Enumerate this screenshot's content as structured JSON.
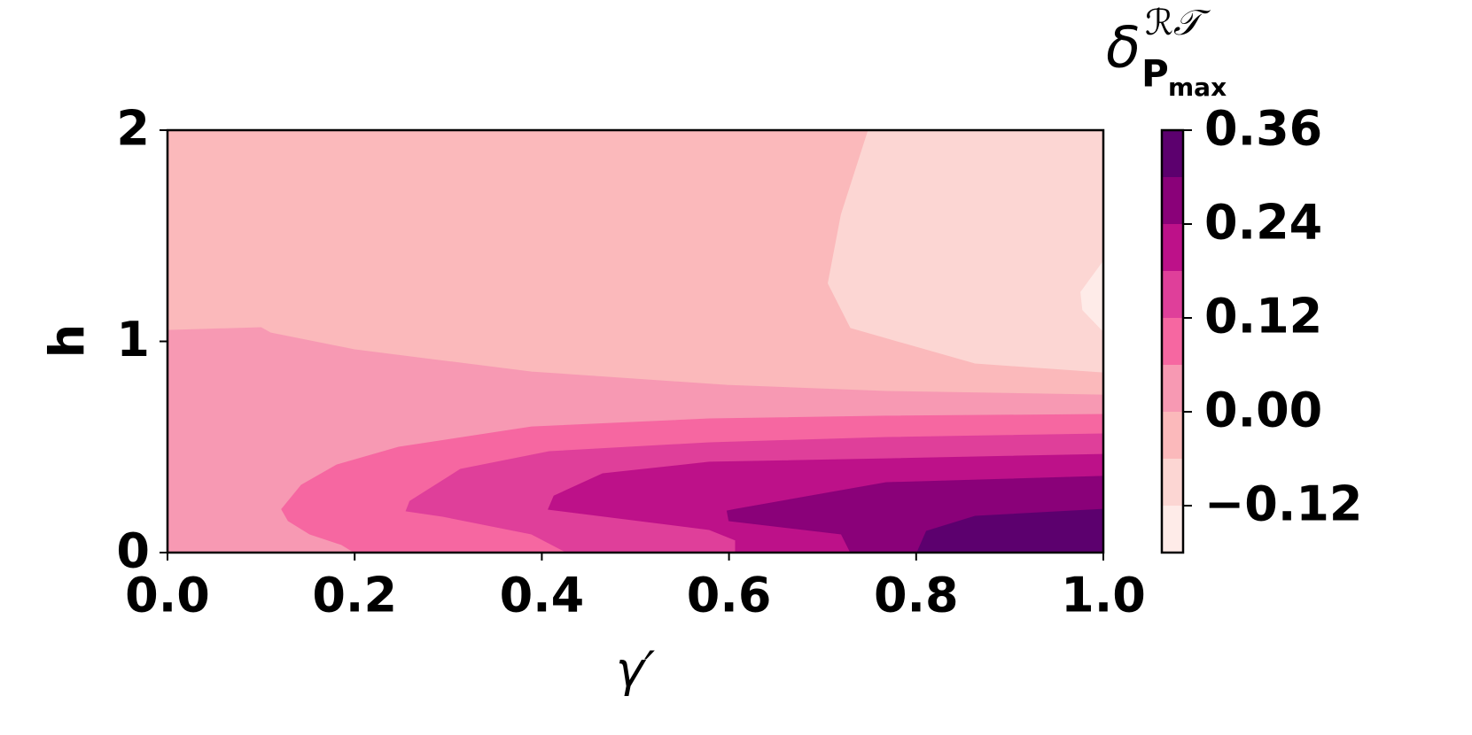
{
  "chart_data": {
    "type": "contourf",
    "xlabel": "γ′",
    "ylabel": "h",
    "colorbar_label": "δ",
    "colorbar_label_sup": "ℛ𝒯",
    "colorbar_label_sub": "P",
    "colorbar_label_sub_sub": "max",
    "xlim": [
      0,
      1
    ],
    "ylim": [
      0,
      2
    ],
    "xticks": [
      {
        "value": 0,
        "label": "0.0"
      },
      {
        "value": 0.2,
        "label": "0.2"
      },
      {
        "value": 0.4,
        "label": "0.4"
      },
      {
        "value": 0.6,
        "label": "0.6"
      },
      {
        "value": 0.8,
        "label": "0.8"
      },
      {
        "value": 1,
        "label": "1.0"
      }
    ],
    "yticks": [
      0,
      1,
      2
    ],
    "clim": [
      -0.18,
      0.36
    ],
    "cticks": [
      {
        "value": -0.12,
        "label": "−0.12"
      },
      {
        "value": 0,
        "label": "0.00"
      },
      0.12,
      0.24,
      0.36
    ],
    "levels": [
      -0.18,
      -0.12,
      -0.06,
      0,
      0.06,
      0.12,
      0.18,
      0.24,
      0.3,
      0.36
    ],
    "colors": [
      "#feebe8",
      "#fcd6d3",
      "#fbb9bb",
      "#f799b3",
      "#f667a1",
      "#df3f9a",
      "#bd1189",
      "#8a0179",
      "#5c006e"
    ],
    "regions": [
      {
        "level": -0.06,
        "x": [
          0,
          1,
          1,
          0
        ],
        "y": [
          0,
          0,
          2,
          2
        ]
      },
      {
        "level": -0.12,
        "x": [
          0.749,
          0.72,
          0.706,
          0.73,
          0.863,
          1,
          1
        ],
        "y": [
          2,
          1.6,
          1.275,
          1.065,
          0.897,
          0.855,
          2
        ]
      },
      {
        "level": -0.18,
        "x": [
          1,
          0.976,
          0.978,
          1
        ],
        "y": [
          1.379,
          1.233,
          1.149,
          1.048
        ]
      },
      {
        "level": 0,
        "x": [
          0,
          0.1,
          0.11,
          0.2,
          0.389,
          0.598,
          0.768,
          1,
          1,
          0
        ],
        "y": [
          1.052,
          1.065,
          1.04,
          0.96,
          0.855,
          0.792,
          0.763,
          0.746,
          0,
          0
        ]
      },
      {
        "level": 0.06,
        "x": [
          1,
          0.768,
          0.579,
          0.389,
          0.247,
          0.181,
          0.143,
          0.122,
          0.129,
          0.152,
          0.186,
          0.2,
          1
        ],
        "y": [
          0.654,
          0.646,
          0.633,
          0.595,
          0.499,
          0.415,
          0.319,
          0.205,
          0.151,
          0.088,
          0.038,
          0,
          0
        ]
      },
      {
        "level": 0.12,
        "x": [
          1,
          0.768,
          0.579,
          0.408,
          0.313,
          0.259,
          0.255,
          0.294,
          0.389,
          0.427,
          1
        ],
        "y": [
          0.562,
          0.545,
          0.52,
          0.478,
          0.394,
          0.243,
          0.197,
          0.172,
          0.088,
          0,
          0
        ]
      },
      {
        "level": 0.18,
        "x": [
          1,
          0.768,
          0.579,
          0.465,
          0.413,
          0.407,
          0.579,
          0.607,
          0.607,
          1
        ],
        "y": [
          0.465,
          0.444,
          0.428,
          0.373,
          0.268,
          0.205,
          0.109,
          0.059,
          0,
          0
        ]
      },
      {
        "level": 0.24,
        "x": [
          1,
          0.768,
          0.607,
          0.598,
          0.6,
          0.72,
          0.73,
          1
        ],
        "y": [
          0.361,
          0.331,
          0.205,
          0.197,
          0.151,
          0.088,
          0,
          0
        ]
      },
      {
        "level": 0.3,
        "x": [
          1,
          0.863,
          0.811,
          0.801,
          1
        ],
        "y": [
          0.205,
          0.172,
          0.101,
          0,
          0
        ]
      }
    ]
  }
}
